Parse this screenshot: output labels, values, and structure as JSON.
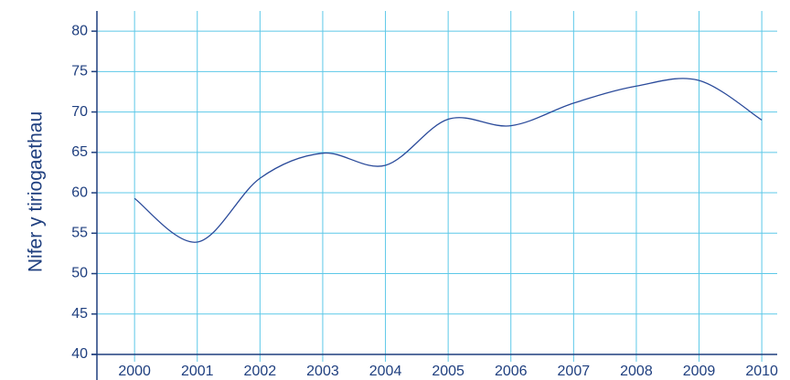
{
  "chart_data": {
    "type": "line",
    "y_label": "Nifer y tiriogaethau",
    "x": [
      2000,
      2001,
      2002,
      2003,
      2004,
      2005,
      2006,
      2007,
      2008,
      2009,
      2010
    ],
    "series": [
      {
        "name": "Nifer y tiriogaethau",
        "color": "#2a4a9a",
        "values": [
          59.3,
          53.9,
          61.8,
          64.9,
          63.4,
          69.1,
          68.3,
          71.1,
          73.2,
          73.9,
          69
        ]
      }
    ],
    "xlim": [
      1999.4,
      2010.45
    ],
    "xticks": [
      2000,
      2001,
      2002,
      2003,
      2004,
      2005,
      2006,
      2007,
      2008,
      2009,
      2010
    ],
    "ylim": [
      40,
      82.5
    ],
    "yticks": [
      40,
      45,
      50,
      55,
      60,
      65,
      70,
      75,
      80
    ],
    "grid": true
  }
}
